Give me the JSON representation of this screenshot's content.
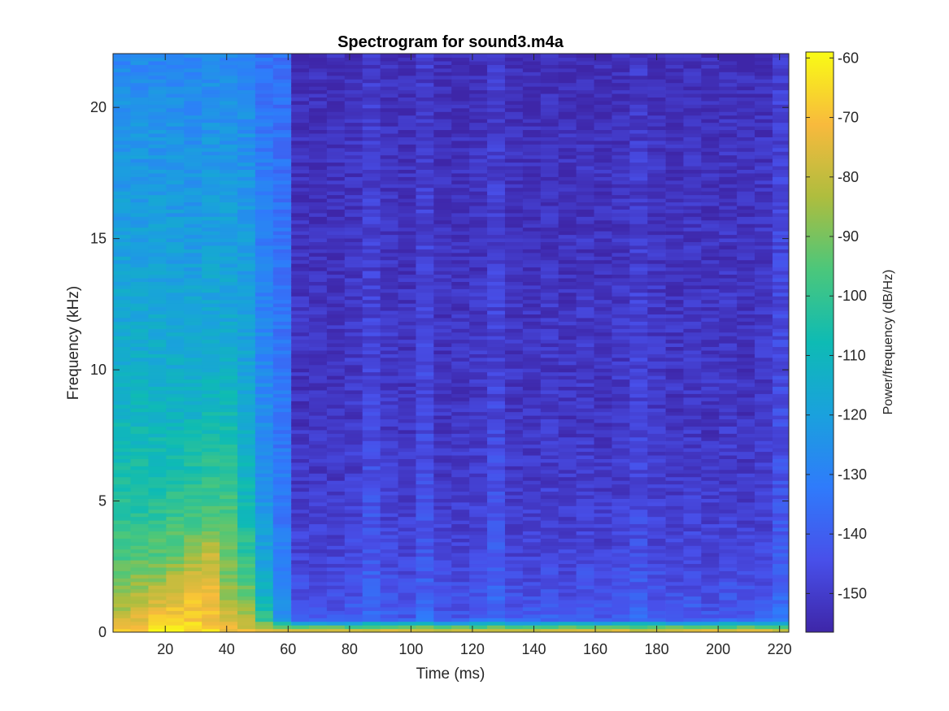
{
  "chart_data": {
    "type": "heatmap",
    "title": "Spectrogram for sound3.m4a",
    "xlabel": "Time (ms)",
    "ylabel": "Frequency (kHz)",
    "colorbar_label": "Power/frequency (dB/Hz)",
    "colormap": "parula",
    "xlim": [
      3,
      223
    ],
    "ylim": [
      0,
      22.05
    ],
    "clim": [
      -156.5,
      -59
    ],
    "x_ticks": [
      20,
      40,
      60,
      80,
      100,
      120,
      140,
      160,
      180,
      200,
      220
    ],
    "y_ticks": [
      0,
      5,
      10,
      15,
      20
    ],
    "colorbar_ticks": [
      -60,
      -70,
      -80,
      -90,
      -100,
      -110,
      -120,
      -130,
      -140,
      -150
    ],
    "time_frames_ms": [
      5.8,
      11.6,
      17.4,
      23.2,
      29.0,
      34.8,
      40.6,
      46.4,
      52.2,
      58.0,
      63.9,
      69.7,
      75.5,
      81.3,
      87.1,
      92.9,
      98.7,
      104.5,
      110.3,
      116.1,
      121.9,
      127.7,
      133.5,
      139.3,
      145.1,
      150.9,
      156.7,
      162.5,
      168.3,
      174.1,
      179.9,
      185.8,
      191.6,
      197.4,
      203.2,
      209.0,
      214.8,
      220.6
    ],
    "frequency_profile_khz": [
      0.1,
      0.5,
      1,
      1.5,
      2,
      2.5,
      3,
      4,
      5,
      6,
      7,
      8,
      10,
      12,
      14,
      16,
      18,
      20,
      22
    ],
    "power_db_hz": [
      [
        -68,
        -80,
        -85,
        -88,
        -90,
        -94,
        -97,
        -100,
        -104,
        -106,
        -108,
        -110,
        -114,
        -117,
        -119,
        -121,
        -123,
        -125,
        -128
      ],
      [
        -66,
        -74,
        -80,
        -84,
        -88,
        -92,
        -96,
        -100,
        -104,
        -106,
        -108,
        -110,
        -114,
        -117,
        -119,
        -121,
        -123,
        -125,
        -128
      ],
      [
        -64,
        -70,
        -76,
        -80,
        -86,
        -91,
        -95,
        -99,
        -103,
        -106,
        -108,
        -110,
        -114,
        -117,
        -119,
        -121,
        -123,
        -125,
        -128
      ],
      [
        -63,
        -68,
        -72,
        -76,
        -80,
        -86,
        -92,
        -97,
        -101,
        -105,
        -108,
        -111,
        -115,
        -118,
        -120,
        -122,
        -124,
        -126,
        -128
      ],
      [
        -64,
        -68,
        -70,
        -72,
        -76,
        -82,
        -88,
        -95,
        -100,
        -104,
        -107,
        -110,
        -114,
        -117,
        -120,
        -122,
        -124,
        -126,
        -128
      ],
      [
        -66,
        -70,
        -72,
        -74,
        -75,
        -78,
        -80,
        -93,
        -98,
        -102,
        -104,
        -108,
        -113,
        -117,
        -119,
        -121,
        -123,
        -125,
        -127
      ],
      [
        -70,
        -78,
        -82,
        -86,
        -88,
        -90,
        -92,
        -94,
        -98,
        -102,
        -104,
        -108,
        -113,
        -117,
        -119,
        -121,
        -123,
        -125,
        -128
      ],
      [
        -74,
        -84,
        -88,
        -92,
        -95,
        -98,
        -101,
        -104,
        -108,
        -111,
        -113,
        -115,
        -118,
        -120,
        -121,
        -122,
        -124,
        -126,
        -128
      ],
      [
        -76,
        -100,
        -108,
        -112,
        -115,
        -118,
        -120,
        -122,
        -124,
        -125,
        -126,
        -127,
        -128,
        -129,
        -130,
        -131,
        -132,
        -133,
        -135
      ],
      [
        -76,
        -126,
        -128,
        -129,
        -130,
        -131,
        -131,
        -132,
        -132,
        -132,
        -133,
        -133,
        -133,
        -134,
        -134,
        -134,
        -135,
        -135,
        -136
      ],
      [
        -78,
        -142,
        -144,
        -145,
        -146,
        -147,
        -148,
        -149,
        -150,
        -151,
        -151,
        -152,
        -152,
        -152,
        -153,
        -153,
        -153,
        -154,
        -154
      ],
      [
        -78,
        -142,
        -144,
        -145,
        -146,
        -147,
        -148,
        -149,
        -150,
        -151,
        -151,
        -152,
        -152,
        -152,
        -153,
        -153,
        -153,
        -154,
        -154
      ],
      [
        -78,
        -142,
        -144,
        -145,
        -146,
        -147,
        -148,
        -149,
        -150,
        -151,
        -151,
        -152,
        -152,
        -152,
        -153,
        -153,
        -153,
        -154,
        -154
      ],
      [
        -78,
        -140,
        -142,
        -144,
        -145,
        -146,
        -147,
        -148,
        -149,
        -150,
        -150,
        -151,
        -151,
        -151,
        -152,
        -152,
        -152,
        -153,
        -154
      ],
      [
        -78,
        -136,
        -138,
        -139,
        -140,
        -141,
        -142,
        -143,
        -144,
        -145,
        -146,
        -147,
        -148,
        -148,
        -149,
        -149,
        -150,
        -150,
        -151
      ],
      [
        -78,
        -140,
        -142,
        -144,
        -145,
        -146,
        -147,
        -148,
        -149,
        -150,
        -150,
        -151,
        -151,
        -151,
        -152,
        -152,
        -152,
        -153,
        -154
      ],
      [
        -78,
        -142,
        -144,
        -145,
        -146,
        -147,
        -148,
        -149,
        -150,
        -151,
        -151,
        -152,
        -152,
        -152,
        -153,
        -153,
        -153,
        -154,
        -154
      ],
      [
        -78,
        -136,
        -138,
        -140,
        -141,
        -142,
        -143,
        -144,
        -145,
        -146,
        -146,
        -147,
        -147,
        -148,
        -148,
        -149,
        -149,
        -150,
        -150
      ],
      [
        -78,
        -142,
        -144,
        -145,
        -146,
        -147,
        -148,
        -149,
        -150,
        -151,
        -151,
        -152,
        -152,
        -152,
        -153,
        -153,
        -153,
        -154,
        -154
      ],
      [
        -78,
        -142,
        -144,
        -145,
        -146,
        -147,
        -148,
        -149,
        -150,
        -151,
        -151,
        -152,
        -152,
        -152,
        -153,
        -153,
        -153,
        -154,
        -154
      ],
      [
        -78,
        -140,
        -142,
        -144,
        -145,
        -146,
        -147,
        -148,
        -149,
        -150,
        -150,
        -151,
        -151,
        -151,
        -152,
        -152,
        -152,
        -153,
        -154
      ],
      [
        -78,
        -136,
        -138,
        -139,
        -140,
        -141,
        -142,
        -143,
        -144,
        -145,
        -146,
        -147,
        -148,
        -148,
        -149,
        -149,
        -150,
        -150,
        -151
      ],
      [
        -78,
        -142,
        -144,
        -145,
        -146,
        -147,
        -148,
        -149,
        -150,
        -151,
        -151,
        -152,
        -152,
        -152,
        -153,
        -153,
        -153,
        -154,
        -154
      ],
      [
        -80,
        -141,
        -143,
        -145,
        -146,
        -147,
        -148,
        -149,
        -150,
        -151,
        -151,
        -152,
        -152,
        -152,
        -153,
        -153,
        -153,
        -154,
        -154
      ],
      [
        -78,
        -140,
        -142,
        -144,
        -145,
        -146,
        -147,
        -148,
        -149,
        -150,
        -150,
        -151,
        -151,
        -151,
        -152,
        -152,
        -152,
        -153,
        -154
      ],
      [
        -78,
        -142,
        -144,
        -145,
        -146,
        -147,
        -148,
        -149,
        -150,
        -151,
        -151,
        -152,
        -152,
        -152,
        -153,
        -153,
        -153,
        -154,
        -154
      ],
      [
        -80,
        -140,
        -142,
        -144,
        -145,
        -146,
        -147,
        -148,
        -149,
        -150,
        -150,
        -151,
        -151,
        -151,
        -152,
        -152,
        -152,
        -153,
        -154
      ],
      [
        -78,
        -142,
        -144,
        -145,
        -146,
        -147,
        -148,
        -149,
        -150,
        -151,
        -151,
        -152,
        -152,
        -152,
        -153,
        -153,
        -153,
        -154,
        -154
      ],
      [
        -78,
        -140,
        -142,
        -144,
        -145,
        -146,
        -147,
        -148,
        -149,
        -150,
        -150,
        -151,
        -151,
        -151,
        -152,
        -152,
        -152,
        -153,
        -154
      ],
      [
        -78,
        -137,
        -139,
        -141,
        -142,
        -143,
        -144,
        -145,
        -146,
        -147,
        -147,
        -148,
        -148,
        -149,
        -149,
        -150,
        -150,
        -151,
        -151
      ],
      [
        -78,
        -140,
        -142,
        -144,
        -145,
        -146,
        -147,
        -148,
        -149,
        -150,
        -150,
        -151,
        -151,
        -151,
        -152,
        -152,
        -152,
        -153,
        -154
      ],
      [
        -78,
        -142,
        -144,
        -145,
        -146,
        -147,
        -148,
        -149,
        -150,
        -151,
        -151,
        -152,
        -152,
        -152,
        -153,
        -153,
        -153,
        -154,
        -154
      ],
      [
        -78,
        -140,
        -142,
        -144,
        -145,
        -146,
        -147,
        -148,
        -149,
        -150,
        -150,
        -151,
        -151,
        -151,
        -152,
        -152,
        -152,
        -153,
        -154
      ],
      [
        -78,
        -142,
        -144,
        -145,
        -146,
        -147,
        -148,
        -149,
        -150,
        -151,
        -151,
        -152,
        -152,
        -152,
        -153,
        -153,
        -153,
        -154,
        -154
      ],
      [
        -80,
        -140,
        -142,
        -144,
        -145,
        -146,
        -147,
        -148,
        -149,
        -150,
        -150,
        -151,
        -151,
        -151,
        -152,
        -152,
        -152,
        -153,
        -154
      ],
      [
        -78,
        -142,
        -144,
        -145,
        -146,
        -147,
        -148,
        -149,
        -150,
        -151,
        -151,
        -152,
        -152,
        -152,
        -153,
        -153,
        -153,
        -154,
        -154
      ],
      [
        -78,
        -140,
        -142,
        -144,
        -145,
        -146,
        -147,
        -148,
        -149,
        -150,
        -150,
        -151,
        -151,
        -151,
        -152,
        -152,
        -152,
        -153,
        -154
      ],
      [
        -78,
        -134,
        -136,
        -138,
        -139,
        -140,
        -141,
        -142,
        -143,
        -144,
        -145,
        -145,
        -146,
        -146,
        -147,
        -147,
        -148,
        -148,
        -149
      ]
    ]
  }
}
